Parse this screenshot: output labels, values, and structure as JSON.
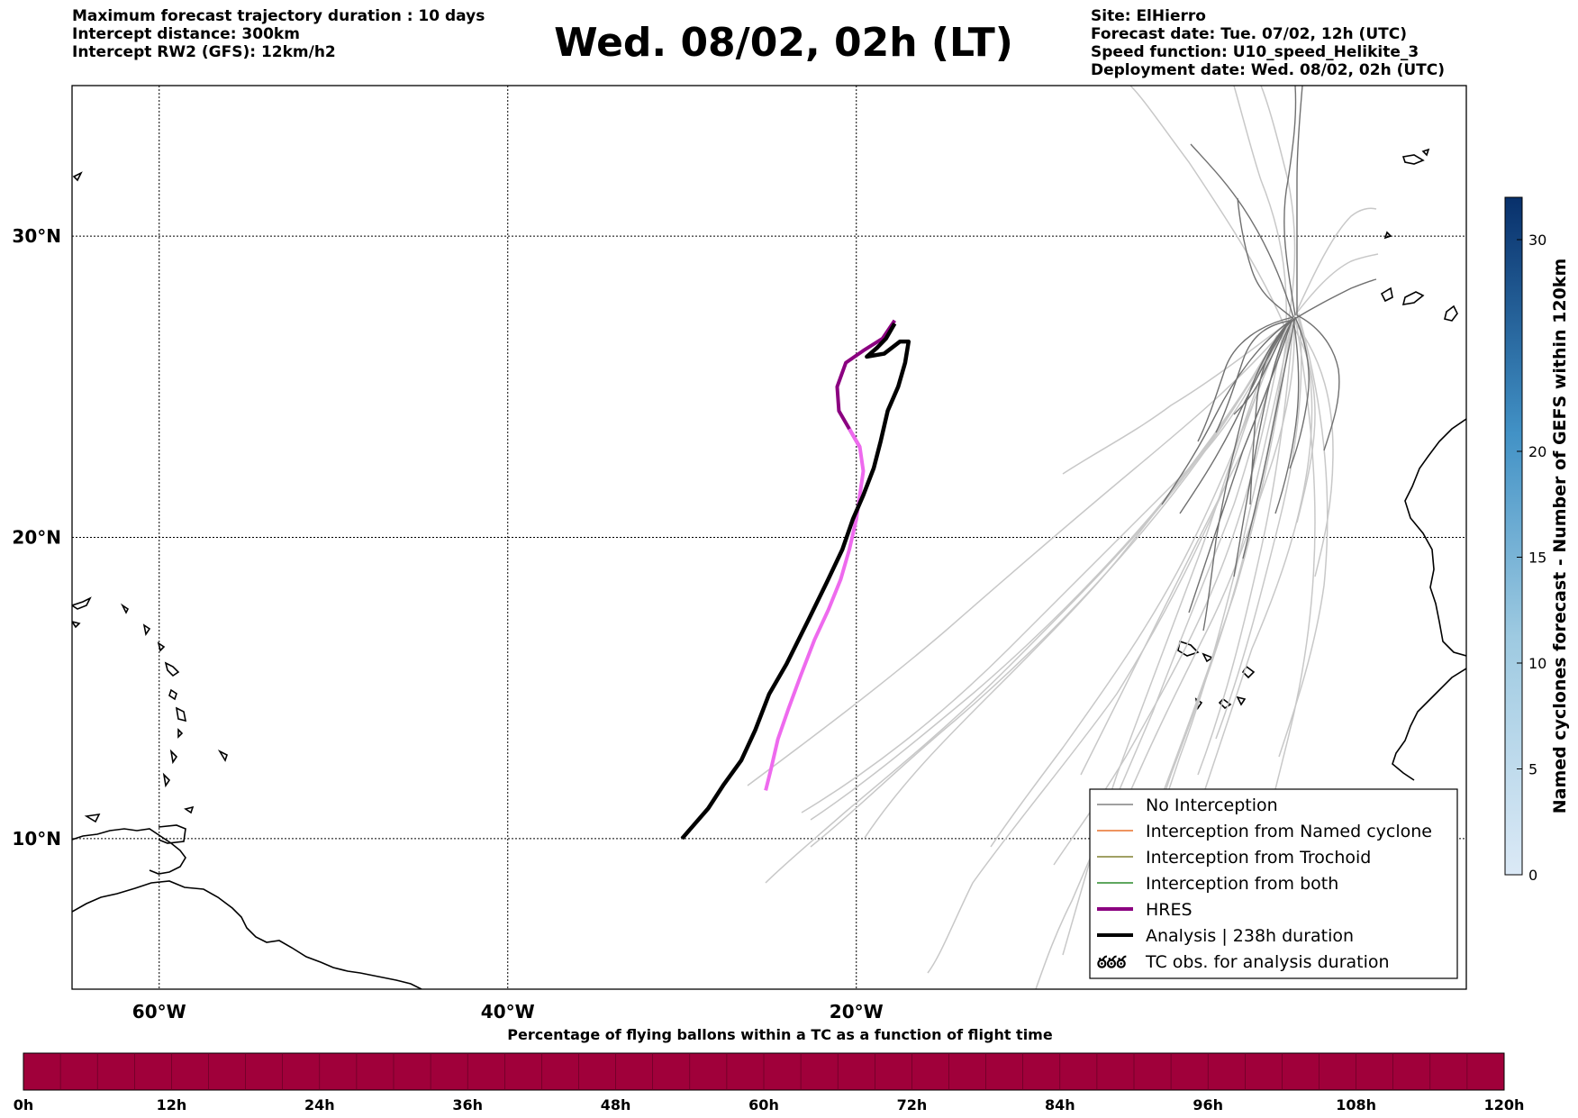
{
  "header": {
    "left_lines": [
      "Maximum forecast trajectory duration : 10 days",
      "Intercept distance: 300km",
      "Intercept RW2 (GFS):  12km/h2"
    ],
    "title": "Wed. 08/02, 02h (LT)",
    "right_lines": [
      "Site: ElHierro",
      "Forecast date: Tue. 07/02, 12h (UTC)",
      "Speed function: U10_speed_Helikite_3",
      "Deployment date: Wed. 08/02, 02h (UTC)"
    ]
  },
  "map": {
    "lon_range": [
      -65,
      15
    ],
    "lat_range": [
      5,
      35
    ],
    "grid": true,
    "lon_labels": [
      {
        "lon": -60,
        "label": "60°W"
      },
      {
        "lon": -40,
        "label": "40°W"
      },
      {
        "lon": -20,
        "label": "20°W"
      }
    ],
    "lat_labels": [
      {
        "lat": 30,
        "label": "30°N"
      },
      {
        "lat": 20,
        "label": "20°N"
      },
      {
        "lat": 10,
        "label": "10°N"
      }
    ]
  },
  "legend": {
    "position": "bottom-right",
    "items": [
      {
        "label": "No Interception",
        "color": "#808080",
        "width": 1.5,
        "kind": "line"
      },
      {
        "label": "Interception from Named cyclone",
        "color": "#e8702a",
        "width": 1.5,
        "kind": "line"
      },
      {
        "label": "Interception from Trochoid",
        "color": "#808030",
        "width": 1.5,
        "kind": "line"
      },
      {
        "label": "Interception from both",
        "color": "#2a8a2a",
        "width": 1.5,
        "kind": "line"
      },
      {
        "label": "HRES",
        "color": "#8b0080",
        "width": 4,
        "kind": "line"
      },
      {
        "label": "Analysis | 238h duration",
        "color": "#000000",
        "width": 4,
        "kind": "line"
      },
      {
        "label": "TC obs. for analysis duration",
        "color": "#000000",
        "kind": "symbol",
        "symbol": "ఠఠఠ"
      }
    ]
  },
  "colorbar_right": {
    "label": "Named cyclones forecast - Number of GEFS within 120km",
    "range": [
      0,
      32
    ],
    "ticks": [
      0,
      5,
      10,
      15,
      20,
      30
    ],
    "color_low": "#dbe9f6",
    "color_high": "#08306b"
  },
  "colorbar_bottom": {
    "label": "Percentage of flying ballons within a TC as a function of flight time",
    "fill_color": "#a0003a",
    "ticks": [
      "0h",
      "12h",
      "24h",
      "36h",
      "48h",
      "60h",
      "72h",
      "84h",
      "96h",
      "108h",
      "120h"
    ]
  },
  "trajectories": {
    "hres": [
      [
        -17.8,
        27.2
      ],
      [
        -18.5,
        26.6
      ],
      [
        -19.6,
        26.2
      ],
      [
        -20.6,
        25.8
      ],
      [
        -21.1,
        25.0
      ],
      [
        -21.0,
        24.2
      ],
      [
        -20.4,
        23.6
      ],
      [
        -19.8,
        23.0
      ],
      [
        -19.6,
        22.2
      ],
      [
        -19.8,
        21.4
      ],
      [
        -20.0,
        20.6
      ],
      [
        -20.4,
        19.6
      ],
      [
        -20.9,
        18.6
      ],
      [
        -21.6,
        17.6
      ],
      [
        -22.4,
        16.6
      ],
      [
        -23.2,
        15.4
      ],
      [
        -23.9,
        14.3
      ],
      [
        -24.5,
        13.3
      ],
      [
        -24.9,
        12.3
      ],
      [
        -25.2,
        11.6
      ]
    ],
    "analysis": [
      [
        -17.8,
        27.1
      ],
      [
        -18.3,
        26.6
      ],
      [
        -18.8,
        26.3
      ],
      [
        -19.4,
        26.0
      ],
      [
        -18.4,
        26.1
      ],
      [
        -17.5,
        26.5
      ],
      [
        -17.0,
        26.5
      ],
      [
        -17.2,
        25.8
      ],
      [
        -17.6,
        25.0
      ],
      [
        -18.2,
        24.2
      ],
      [
        -18.6,
        23.2
      ],
      [
        -19.0,
        22.3
      ],
      [
        -19.6,
        21.4
      ],
      [
        -20.2,
        20.6
      ],
      [
        -20.8,
        19.6
      ],
      [
        -21.7,
        18.5
      ],
      [
        -22.8,
        17.2
      ],
      [
        -24.0,
        15.8
      ],
      [
        -25.0,
        14.8
      ],
      [
        -25.8,
        13.6
      ],
      [
        -26.6,
        12.6
      ],
      [
        -27.6,
        11.8
      ],
      [
        -28.5,
        11.0
      ],
      [
        -29.4,
        10.4
      ],
      [
        -30.0,
        10.0
      ]
    ]
  }
}
